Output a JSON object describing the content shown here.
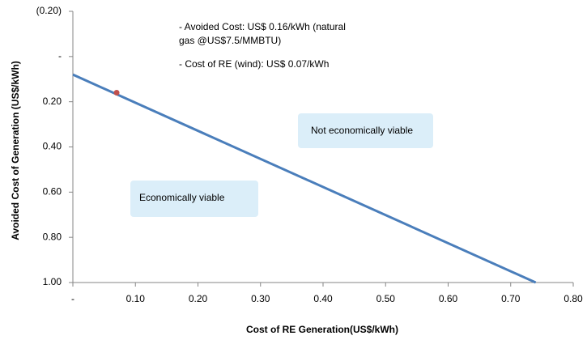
{
  "chart_data": {
    "type": "line",
    "xlabel": "Cost of RE Generation(US$/kWh)",
    "ylabel": "Avoided Cost of Generation (US$/kWh)",
    "xlim": [
      0,
      0.8
    ],
    "xticks": [
      {
        "value": 0,
        "label": "-"
      },
      {
        "value": 0.1,
        "label": "0.10"
      },
      {
        "value": 0.2,
        "label": "0.20"
      },
      {
        "value": 0.3,
        "label": "0.30"
      },
      {
        "value": 0.4,
        "label": "0.40"
      },
      {
        "value": 0.5,
        "label": "0.50"
      },
      {
        "value": 0.6,
        "label": "0.60"
      },
      {
        "value": 0.7,
        "label": "0.70"
      },
      {
        "value": 0.8,
        "label": "0.80"
      }
    ],
    "ylim": [
      -0.2,
      1.0
    ],
    "y_reversed": true,
    "yticks": [
      {
        "value": -0.2,
        "label": "(0.20)"
      },
      {
        "value": 0,
        "label": "-"
      },
      {
        "value": 0.2,
        "label": "0.20"
      },
      {
        "value": 0.4,
        "label": "0.40"
      },
      {
        "value": 0.6,
        "label": "0.60"
      },
      {
        "value": 0.8,
        "label": "0.80"
      },
      {
        "value": 1.0,
        "label": "1.00"
      }
    ],
    "grid": false,
    "series": [
      {
        "color": "#4a7ebb",
        "x": [
          0,
          0.74
        ],
        "values": [
          0.08,
          1.0
        ]
      }
    ],
    "marker": {
      "x": 0.07,
      "value": 0.16,
      "color": "#c0504d"
    },
    "annotations": [
      "- Avoided Cost: US$ 0.16/kWh (natural",
      "gas @US$7.5/MMBTU)",
      "- Cost of RE (wind): US$ 0.07/kWh"
    ],
    "regions": [
      "Not economically viable",
      "Economically viable"
    ]
  }
}
